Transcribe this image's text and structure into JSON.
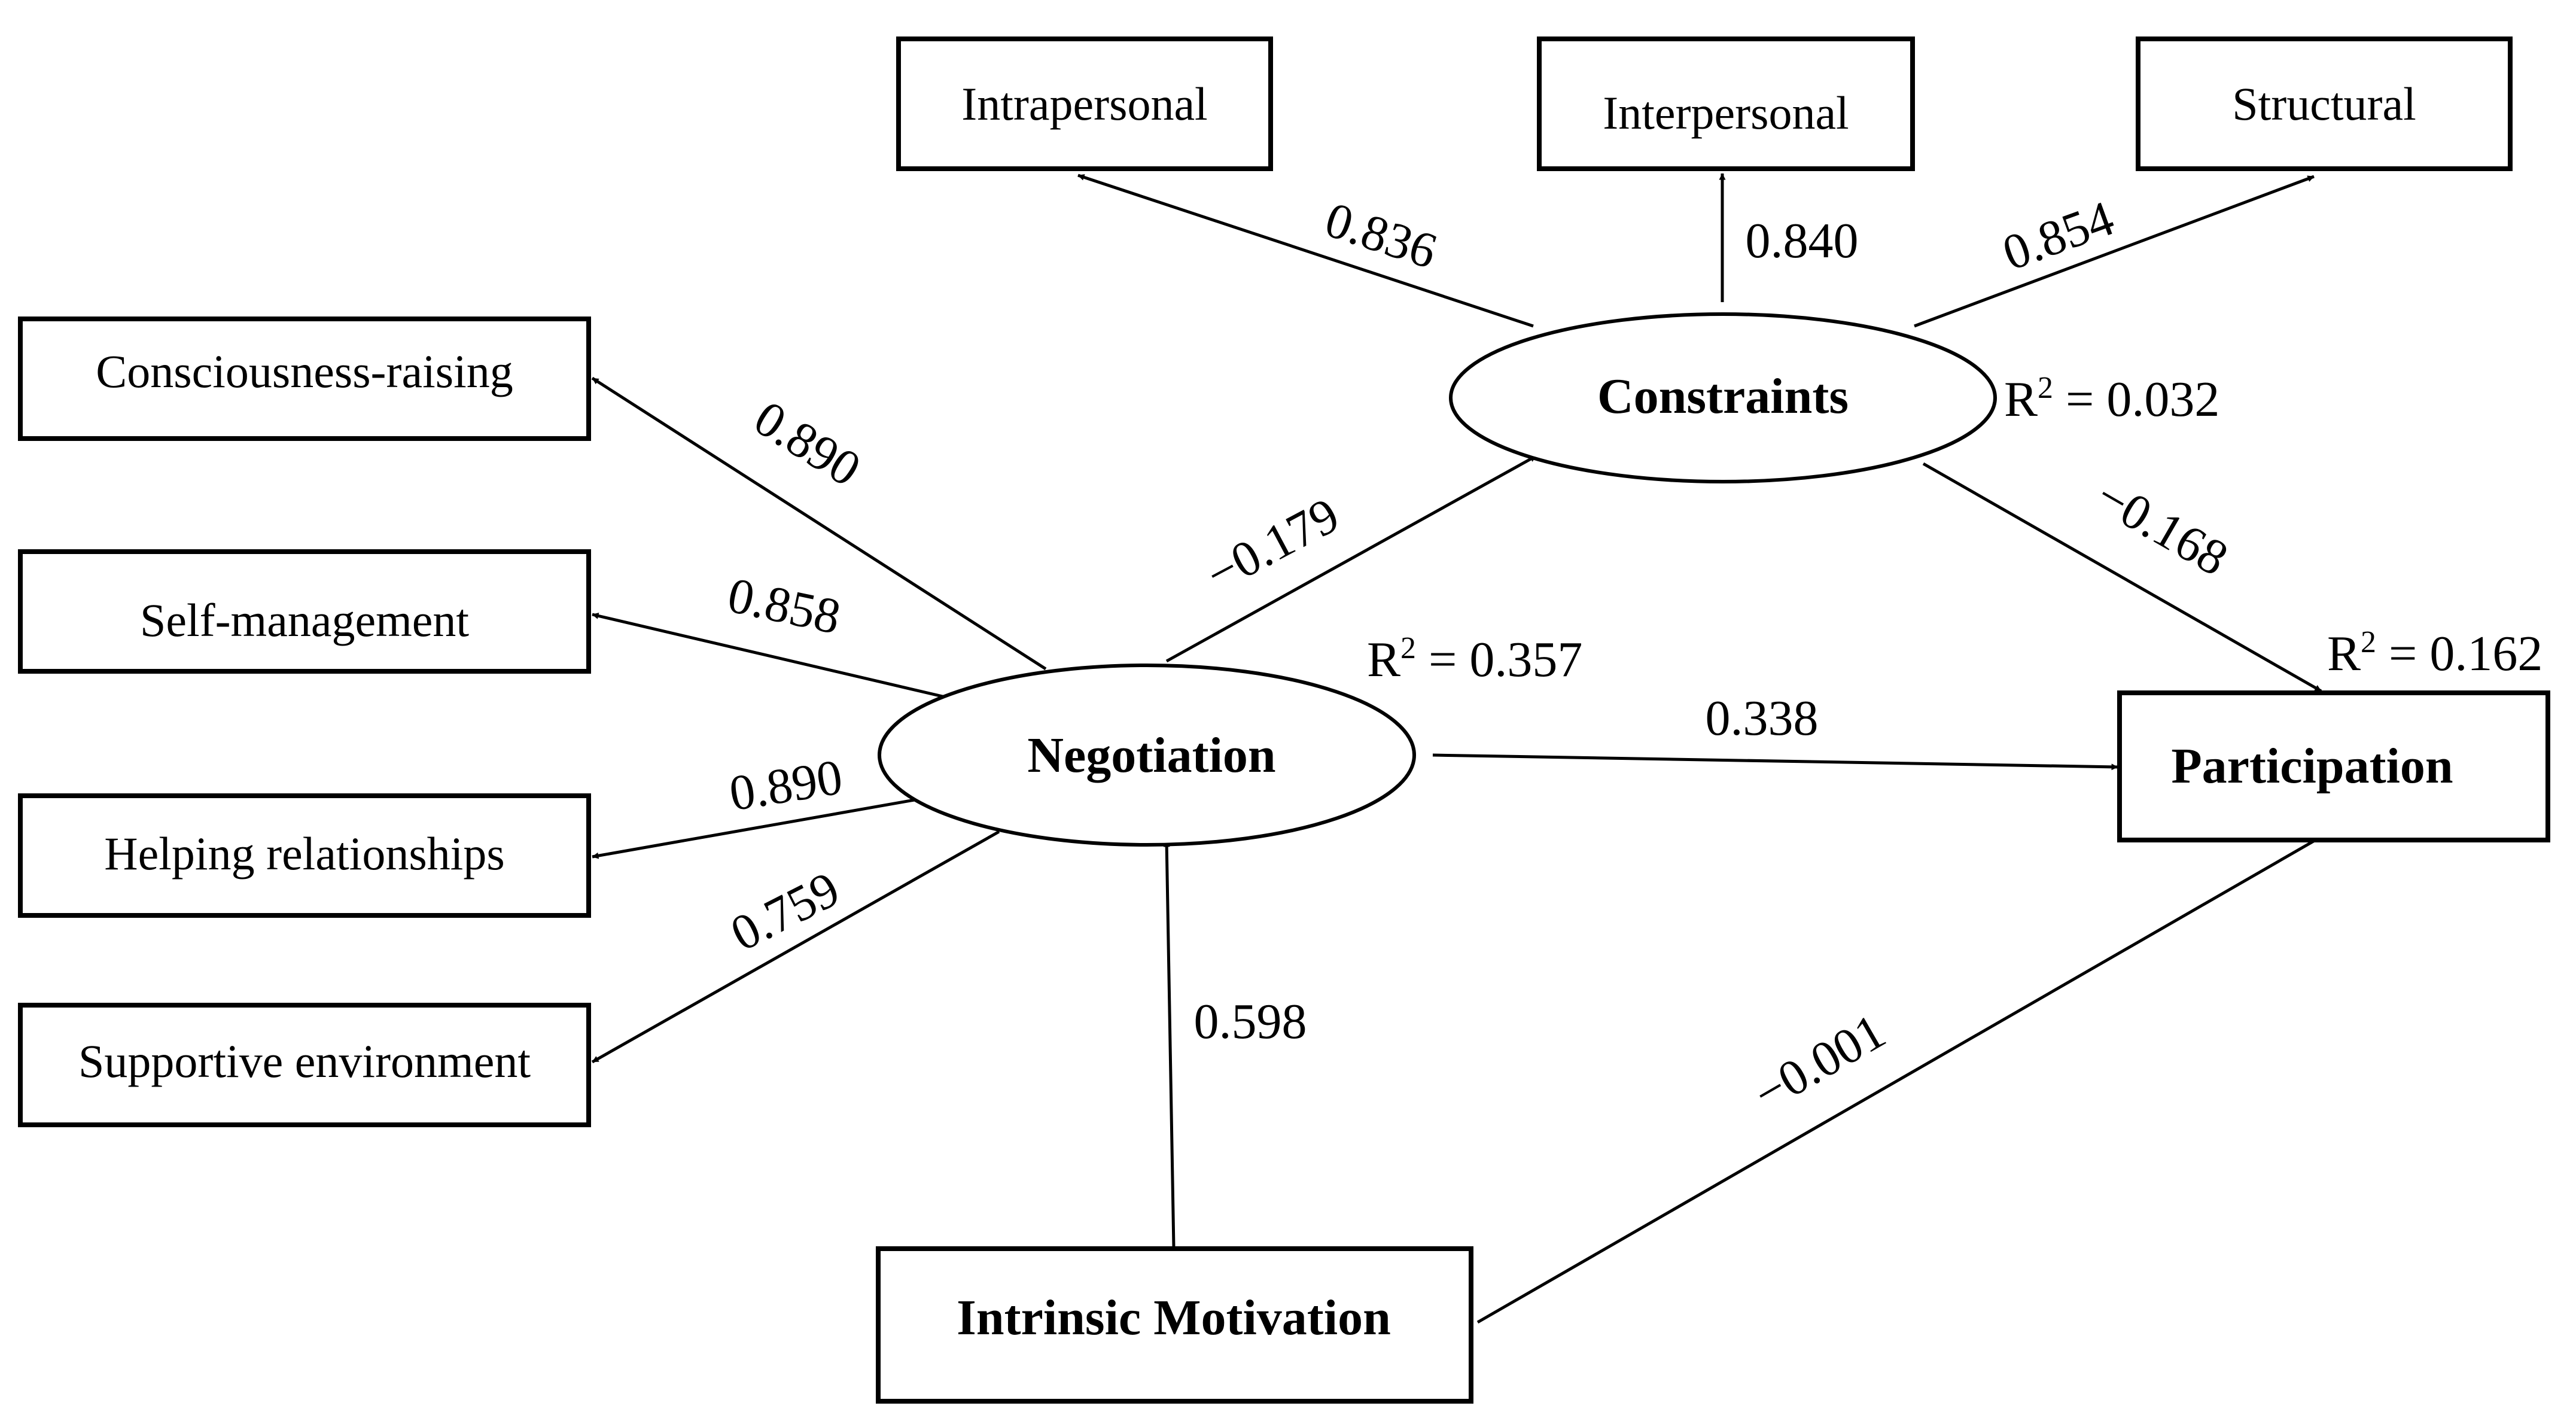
{
  "nodes": {
    "intrapersonal": "Intrapersonal",
    "interpersonal": "Interpersonal",
    "structural": "Structural",
    "constraints": "Constraints",
    "consciousness_raising": "Consciousness-raising",
    "self_management": "Self-management",
    "helping_relationships": "Helping relationships",
    "supportive_environment": "Supportive environment",
    "negotiation": "Negotiation",
    "participation": "Participation",
    "intrinsic_motivation": "Intrinsic Motivation"
  },
  "paths": {
    "constraints_intrapersonal": "0.836",
    "constraints_interpersonal": "0.840",
    "constraints_structural": "0.854",
    "negotiation_consciousness": "0.890",
    "negotiation_self_management": "0.858",
    "negotiation_helping": "0.890",
    "negotiation_supportive": "0.759",
    "negotiation_constraints": "−0.179",
    "constraints_participation": "−0.168",
    "negotiation_participation": "0.338",
    "motivation_negotiation": "0.598",
    "motivation_participation": "−0.001"
  },
  "r2": {
    "label": "R",
    "sup": "2",
    "constraints": " = 0.032",
    "negotiation": " = 0.357",
    "participation": " = 0.162"
  }
}
